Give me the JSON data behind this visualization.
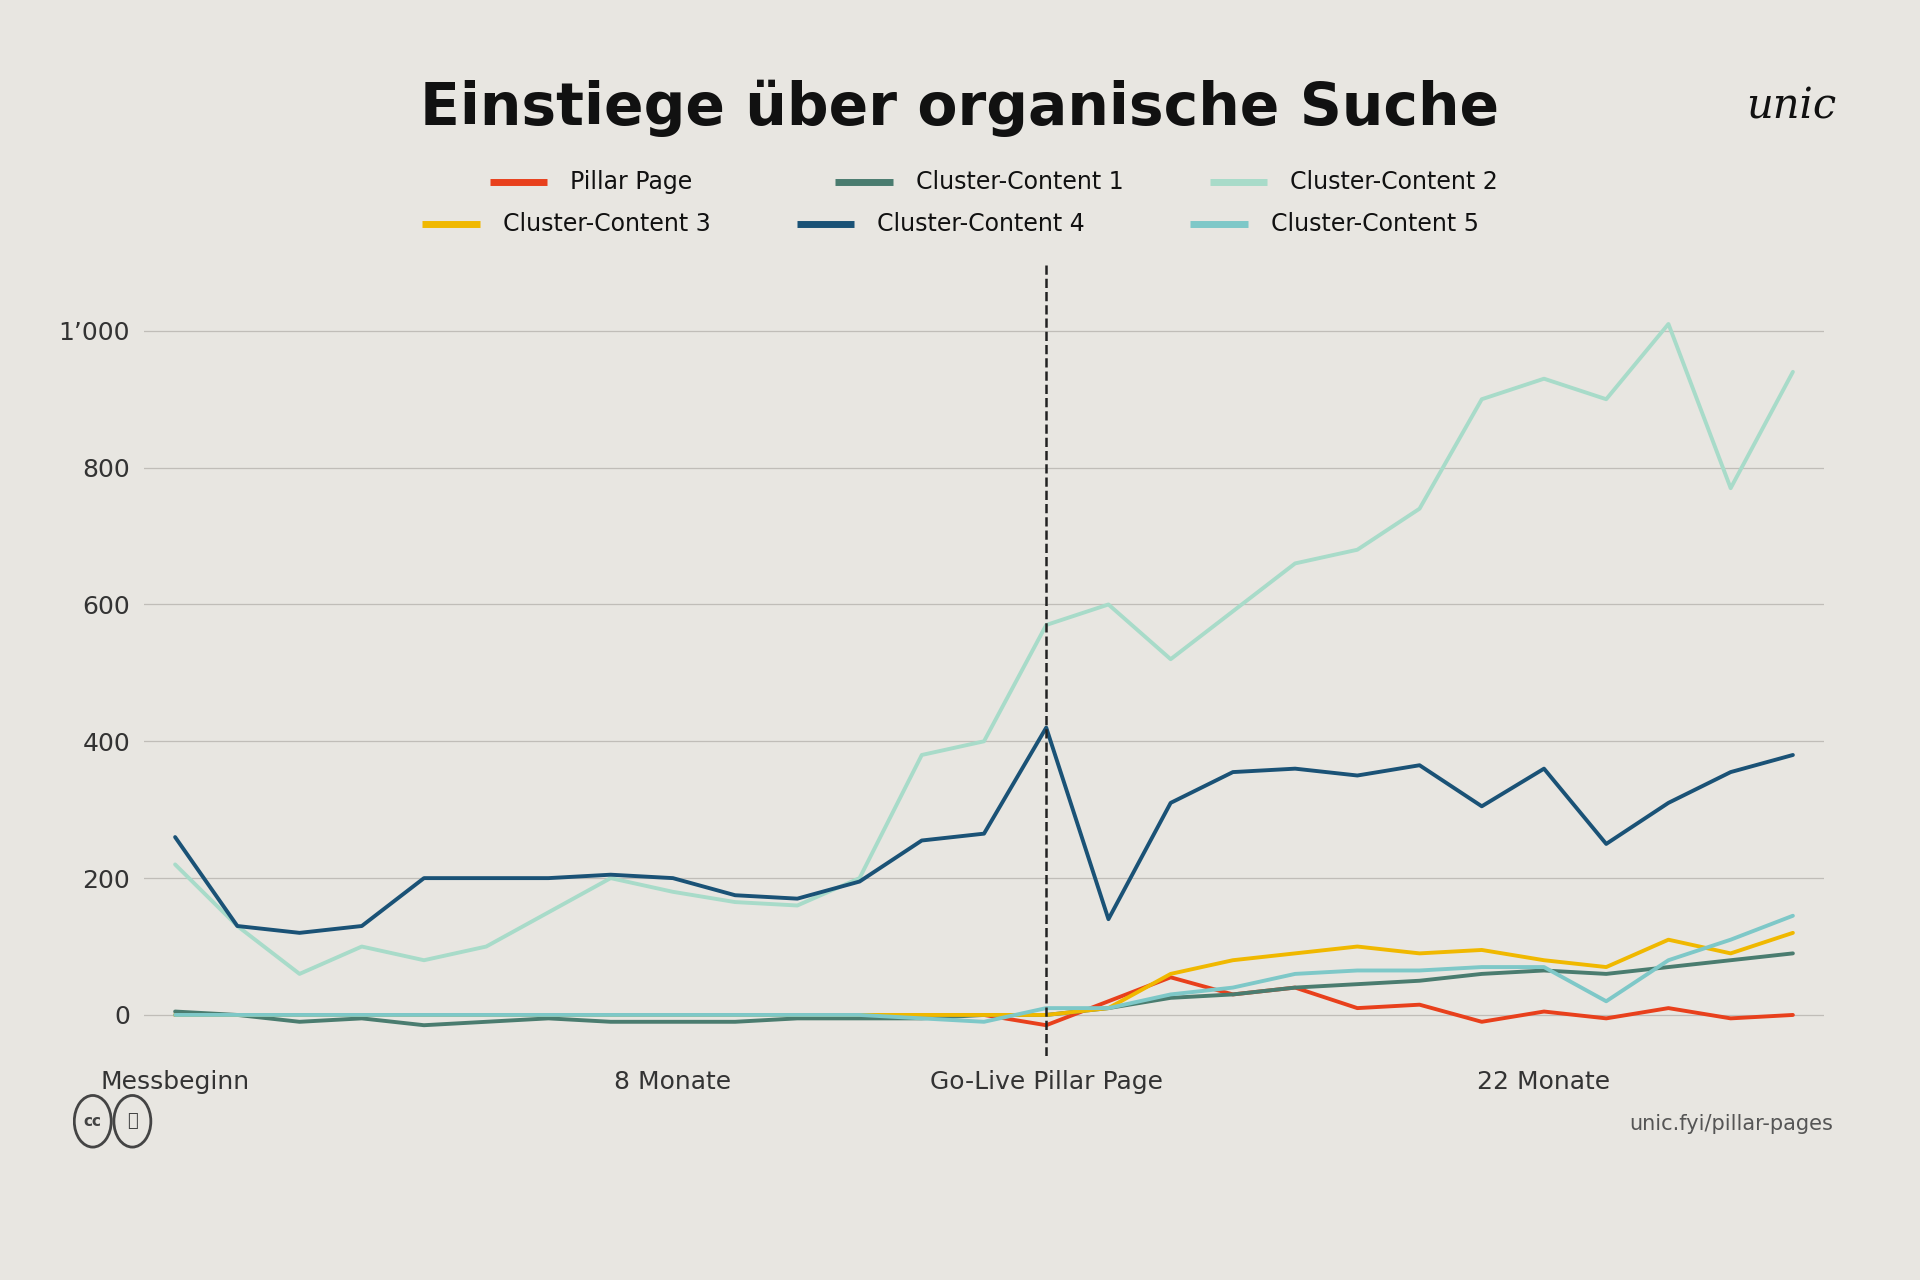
{
  "title": "Einstiege über organische Suche",
  "background_color": "#e8e6e1",
  "plot_background": "#e8e6e1",
  "bottom_bar_color": "#4a6741",
  "x_labels": [
    "Messbeginn",
    "8 Monate",
    "Go-Live Pillar Page",
    "22 Monate"
  ],
  "x_ticks": [
    0,
    8,
    14,
    22
  ],
  "vline_x": 14,
  "series": {
    "Pillar Page": {
      "color": "#e8401c",
      "values_x": [
        0,
        1,
        2,
        3,
        4,
        5,
        6,
        7,
        8,
        9,
        10,
        11,
        12,
        13,
        14,
        15,
        16,
        17,
        18,
        19,
        20,
        21,
        22,
        23,
        24,
        25,
        26
      ],
      "values_y": [
        0,
        0,
        0,
        0,
        0,
        0,
        0,
        0,
        0,
        0,
        0,
        0,
        0,
        0,
        -15,
        20,
        55,
        30,
        40,
        10,
        15,
        -10,
        5,
        -5,
        10,
        -5,
        0
      ]
    },
    "Cluster-Content 1": {
      "color": "#4a7c6f",
      "values_x": [
        0,
        1,
        2,
        3,
        4,
        5,
        6,
        7,
        8,
        9,
        10,
        11,
        12,
        13,
        14,
        15,
        16,
        17,
        18,
        19,
        20,
        21,
        22,
        23,
        24,
        25,
        26
      ],
      "values_y": [
        5,
        0,
        -10,
        -5,
        -15,
        -10,
        -5,
        -10,
        -10,
        -10,
        -5,
        -5,
        -5,
        0,
        0,
        10,
        25,
        30,
        40,
        45,
        50,
        60,
        65,
        60,
        70,
        80,
        90
      ]
    },
    "Cluster-Content 2": {
      "color": "#a8dbc9",
      "values_x": [
        0,
        1,
        2,
        3,
        4,
        5,
        6,
        7,
        8,
        9,
        10,
        11,
        12,
        13,
        14,
        15,
        16,
        17,
        18,
        19,
        20,
        21,
        22,
        23,
        24,
        25,
        26
      ],
      "values_y": [
        220,
        130,
        60,
        100,
        80,
        100,
        150,
        200,
        180,
        165,
        160,
        200,
        380,
        400,
        570,
        600,
        520,
        590,
        660,
        680,
        740,
        900,
        930,
        900,
        1010,
        770,
        940
      ]
    },
    "Cluster-Content 3": {
      "color": "#f0b800",
      "values_x": [
        0,
        1,
        2,
        3,
        4,
        5,
        6,
        7,
        8,
        9,
        10,
        11,
        12,
        13,
        14,
        15,
        16,
        17,
        18,
        19,
        20,
        21,
        22,
        23,
        24,
        25,
        26
      ],
      "values_y": [
        0,
        0,
        0,
        0,
        0,
        0,
        0,
        0,
        0,
        0,
        0,
        0,
        0,
        0,
        0,
        10,
        60,
        80,
        90,
        100,
        90,
        95,
        80,
        70,
        110,
        90,
        120
      ]
    },
    "Cluster-Content 4": {
      "color": "#1a5276",
      "values_x": [
        0,
        1,
        2,
        3,
        4,
        5,
        6,
        7,
        8,
        9,
        10,
        11,
        12,
        13,
        14,
        15,
        16,
        17,
        18,
        19,
        20,
        21,
        22,
        23,
        24,
        25,
        26
      ],
      "values_y": [
        260,
        130,
        120,
        130,
        200,
        200,
        200,
        205,
        200,
        175,
        170,
        195,
        255,
        265,
        420,
        140,
        310,
        355,
        360,
        350,
        365,
        305,
        360,
        250,
        310,
        355,
        380
      ]
    },
    "Cluster-Content 5": {
      "color": "#7ec8c8",
      "values_x": [
        0,
        1,
        2,
        3,
        4,
        5,
        6,
        7,
        8,
        9,
        10,
        11,
        12,
        13,
        14,
        15,
        16,
        17,
        18,
        19,
        20,
        21,
        22,
        23,
        24,
        25,
        26
      ],
      "values_y": [
        0,
        0,
        0,
        0,
        0,
        0,
        0,
        0,
        0,
        0,
        0,
        0,
        -5,
        -10,
        10,
        10,
        30,
        40,
        60,
        65,
        65,
        70,
        70,
        20,
        80,
        110,
        145
      ]
    }
  },
  "yticks": [
    0,
    200,
    400,
    600,
    800,
    1000
  ],
  "ylim": [
    -60,
    1100
  ],
  "unic_logo_text": "unic",
  "footer_right": "unic.fyi/pillar-pages",
  "legend_row1": [
    "Pillar Page",
    "Cluster-Content 1",
    "Cluster-Content 2"
  ],
  "legend_row2": [
    "Cluster-Content 3",
    "Cluster-Content 4",
    "Cluster-Content 5"
  ]
}
